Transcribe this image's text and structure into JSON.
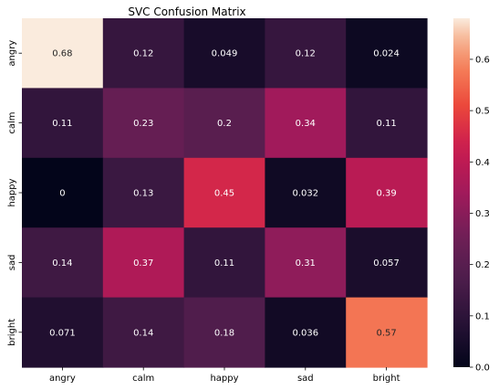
{
  "chart_data": {
    "type": "heatmap",
    "title": "SVC Confusion Matrix",
    "xlabel": "",
    "ylabel": "",
    "x_categories": [
      "angry",
      "calm",
      "happy",
      "sad",
      "bright"
    ],
    "y_categories": [
      "angry",
      "calm",
      "happy",
      "sad",
      "bright"
    ],
    "values": [
      [
        0.68,
        0.12,
        0.049,
        0.12,
        0.024
      ],
      [
        0.11,
        0.23,
        0.2,
        0.34,
        0.11
      ],
      [
        0,
        0.13,
        0.45,
        0.032,
        0.39
      ],
      [
        0.14,
        0.37,
        0.11,
        0.31,
        0.057
      ],
      [
        0.071,
        0.14,
        0.18,
        0.036,
        0.57
      ]
    ],
    "value_labels": [
      [
        "0.68",
        "0.12",
        "0.049",
        "0.12",
        "0.024"
      ],
      [
        "0.11",
        "0.23",
        "0.2",
        "0.34",
        "0.11"
      ],
      [
        "0",
        "0.13",
        "0.45",
        "0.032",
        "0.39"
      ],
      [
        "0.14",
        "0.37",
        "0.11",
        "0.31",
        "0.057"
      ],
      [
        "0.071",
        "0.14",
        "0.18",
        "0.036",
        "0.57"
      ]
    ],
    "colormap": "rocket",
    "colorbar": {
      "range": [
        0,
        0.68
      ],
      "ticks": [
        0.0,
        0.1,
        0.2,
        0.3,
        0.4,
        0.5,
        0.6
      ],
      "tick_labels": [
        "0.0",
        "0.1",
        "0.2",
        "0.3",
        "0.4",
        "0.5",
        "0.6"
      ]
    },
    "grid": false
  }
}
